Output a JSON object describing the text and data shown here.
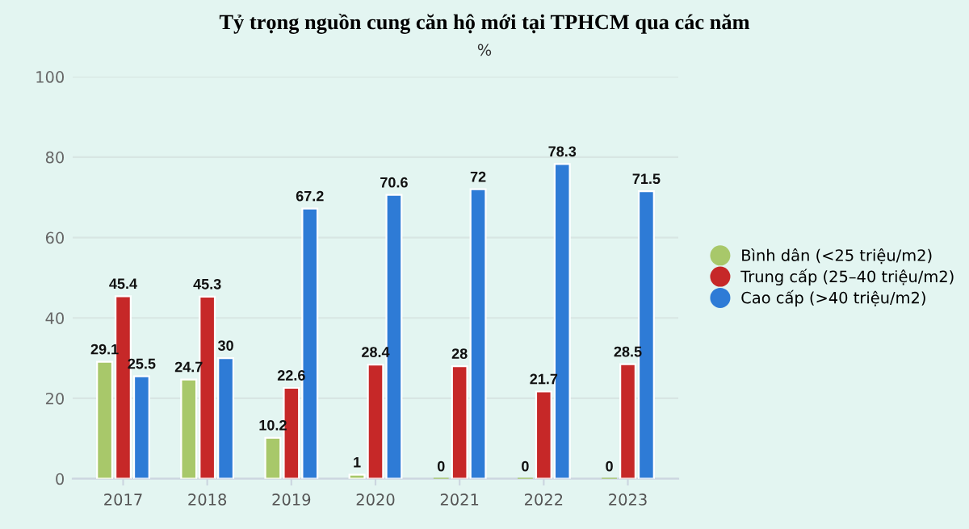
{
  "chart_data": {
    "type": "bar",
    "title": "Tỷ trọng nguồn cung căn hộ mới tại TPHCM qua các năm",
    "subtitle": "%",
    "categories": [
      "2017",
      "2018",
      "2019",
      "2020",
      "2021",
      "2022",
      "2023"
    ],
    "series": [
      {
        "name": "Bình dân (<25 triệu/m2)",
        "color": "#a8c86a",
        "values": [
          29.1,
          24.7,
          10.2,
          1,
          0,
          0,
          0
        ]
      },
      {
        "name": "Trung cấp (25–40 triệu/m2)",
        "color": "#c62828",
        "values": [
          45.4,
          45.3,
          22.6,
          28.4,
          28,
          21.7,
          28.5
        ]
      },
      {
        "name": "Cao cấp (>40 triệu/m2)",
        "color": "#2e7bd6",
        "values": [
          25.5,
          30,
          67.2,
          70.6,
          72,
          78.3,
          71.5
        ]
      }
    ],
    "ylim": [
      0,
      100
    ],
    "yticks": [
      0,
      20,
      40,
      60,
      80,
      100
    ],
    "grid": "y",
    "legend": "right",
    "data_labels": true
  }
}
